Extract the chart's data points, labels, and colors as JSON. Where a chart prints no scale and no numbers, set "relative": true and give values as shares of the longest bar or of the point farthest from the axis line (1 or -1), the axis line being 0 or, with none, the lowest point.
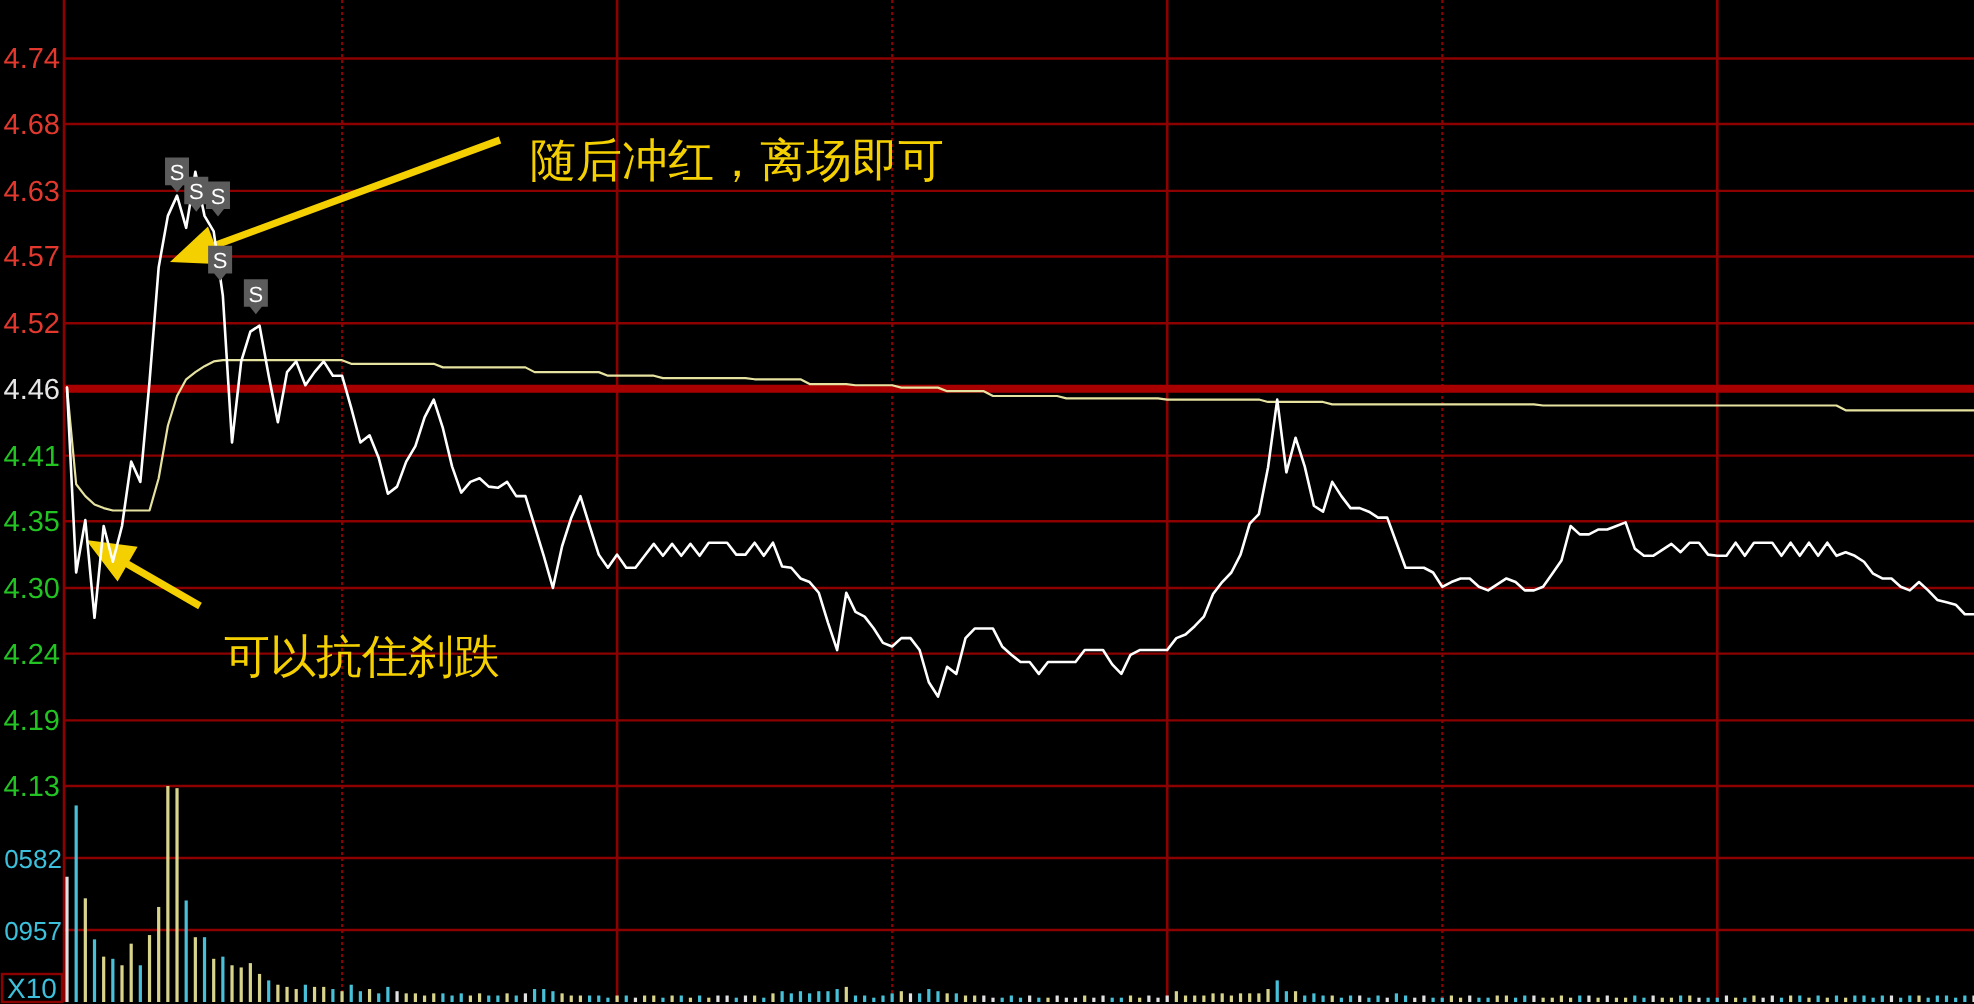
{
  "chart_data": [
    {
      "type": "line",
      "categories": [
        null,
        null,
        null,
        null,
        null,
        null,
        null,
        null,
        null,
        null,
        null,
        null,
        null,
        null,
        null,
        null,
        null,
        null,
        null,
        null,
        null,
        null,
        null,
        null,
        null,
        null,
        null,
        null,
        null,
        null,
        null,
        null,
        null,
        null,
        null,
        null,
        null,
        null,
        null,
        null,
        null,
        null,
        null,
        null,
        null,
        null,
        null,
        null,
        null,
        null,
        null,
        null,
        null,
        null,
        null,
        null,
        null,
        null,
        null,
        null,
        null,
        null,
        null,
        null,
        null,
        null,
        null,
        null,
        null,
        null,
        null,
        null,
        null,
        null,
        null,
        null,
        null,
        null,
        null,
        null,
        null,
        null,
        null,
        null,
        null,
        null,
        null,
        null,
        null,
        null,
        null,
        null,
        null,
        null,
        null,
        null,
        null,
        null,
        null,
        null,
        null,
        null,
        null,
        null,
        null,
        null,
        null,
        null,
        null,
        null,
        null,
        null,
        null,
        null,
        null,
        null,
        null,
        null,
        null,
        null,
        null,
        null,
        null,
        null,
        null,
        null,
        null,
        null,
        null,
        null,
        null,
        null,
        null,
        null,
        null,
        null,
        null,
        null,
        null,
        null,
        null,
        null,
        null,
        null,
        null,
        null,
        null,
        null,
        null,
        null,
        null,
        null,
        null,
        null,
        null,
        null,
        null,
        null,
        null,
        null,
        null,
        null,
        null,
        null,
        null,
        null,
        null,
        null,
        null,
        null,
        null,
        null,
        null,
        null,
        null,
        null,
        null,
        null,
        null,
        null,
        null,
        null,
        null,
        null,
        null,
        null,
        null,
        null,
        null,
        null,
        null,
        null,
        null,
        null,
        null,
        null,
        null,
        null,
        null,
        null,
        null,
        null,
        null,
        null,
        null,
        null,
        null,
        null,
        null
      ],
      "series": [
        {
          "color": "#e6e2a0",
          "values": [
            4.464,
            4.383,
            4.373,
            4.366,
            4.363,
            4.361,
            4.361,
            4.361,
            4.361,
            4.361,
            4.388,
            4.432,
            4.457,
            4.471,
            4.477,
            4.482,
            4.486,
            4.487,
            4.487,
            4.487,
            4.487,
            4.487,
            4.487,
            4.487,
            4.487,
            4.487,
            4.487,
            4.487,
            4.487,
            4.487,
            4.487,
            4.484,
            4.484,
            4.484,
            4.484,
            4.484,
            4.484,
            4.484,
            4.484,
            4.484,
            4.484,
            4.481,
            4.481,
            4.481,
            4.481,
            4.481,
            4.481,
            4.481,
            4.481,
            4.481,
            4.481,
            4.477,
            4.477,
            4.477,
            4.477,
            4.477,
            4.477,
            4.477,
            4.477,
            4.474,
            4.474,
            4.474,
            4.474,
            4.474,
            4.474,
            4.472,
            4.472,
            4.472,
            4.472,
            4.472,
            4.472,
            4.472,
            4.472,
            4.472,
            4.472,
            4.471,
            4.471,
            4.471,
            4.471,
            4.471,
            4.471,
            4.467,
            4.467,
            4.467,
            4.467,
            4.467,
            4.466,
            4.466,
            4.466,
            4.466,
            4.466,
            4.464,
            4.464,
            4.464,
            4.464,
            4.464,
            4.461,
            4.461,
            4.461,
            4.461,
            4.461,
            4.457,
            4.457,
            4.457,
            4.457,
            4.457,
            4.457,
            4.457,
            4.457,
            4.455,
            4.455,
            4.455,
            4.455,
            4.455,
            4.455,
            4.455,
            4.455,
            4.455,
            4.455,
            4.455,
            4.454,
            4.454,
            4.454,
            4.454,
            4.454,
            4.454,
            4.454,
            4.454,
            4.454,
            4.454,
            4.454,
            4.452,
            4.452,
            4.452,
            4.452,
            4.452,
            4.452,
            4.452,
            4.45,
            4.45,
            4.45,
            4.45,
            4.45,
            4.45,
            4.45,
            4.45,
            4.45,
            4.45,
            4.45,
            4.45,
            4.45,
            4.45,
            4.45,
            4.45,
            4.45,
            4.45,
            4.45,
            4.45,
            4.45,
            4.45,
            4.45,
            4.449,
            4.449,
            4.449,
            4.449,
            4.449,
            4.449,
            4.449,
            4.449,
            4.449,
            4.449,
            4.449,
            4.449,
            4.449,
            4.449,
            4.449,
            4.449,
            4.449,
            4.449,
            4.449,
            4.449,
            4.449,
            4.449,
            4.449,
            4.449,
            4.449,
            4.449,
            4.449,
            4.449,
            4.449,
            4.449,
            4.449,
            4.449,
            4.449,
            4.445,
            4.445,
            4.445,
            4.445,
            4.445,
            4.445,
            4.445,
            4.445,
            4.445,
            4.445,
            4.445,
            4.445,
            4.445,
            4.445,
            4.445
          ]
        },
        {
          "color": "#ffffff",
          "values": [
            4.464,
            4.309,
            4.353,
            4.271,
            4.348,
            4.318,
            4.348,
            4.402,
            4.385,
            4.469,
            4.565,
            4.608,
            4.625,
            4.598,
            4.645,
            4.608,
            4.595,
            4.541,
            4.418,
            4.486,
            4.511,
            4.516,
            4.474,
            4.435,
            4.477,
            4.486,
            4.466,
            4.477,
            4.486,
            4.474,
            4.474,
            4.447,
            4.418,
            4.424,
            4.405,
            4.375,
            4.381,
            4.402,
            4.415,
            4.439,
            4.454,
            4.43,
            4.398,
            4.376,
            4.385,
            4.388,
            4.381,
            4.38,
            4.385,
            4.373,
            4.373,
            4.348,
            4.323,
            4.296,
            4.331,
            4.355,
            4.373,
            4.348,
            4.324,
            4.313,
            4.324,
            4.313,
            4.313,
            4.323,
            4.333,
            4.323,
            4.333,
            4.323,
            4.333,
            4.323,
            4.334,
            4.334,
            4.334,
            4.324,
            4.324,
            4.334,
            4.323,
            4.334,
            4.314,
            4.313,
            4.304,
            4.301,
            4.292,
            4.267,
            4.244,
            4.292,
            4.276,
            4.272,
            4.262,
            4.25,
            4.247,
            4.254,
            4.254,
            4.244,
            4.217,
            4.205,
            4.23,
            4.224,
            4.254,
            4.262,
            4.262,
            4.262,
            4.247,
            4.24,
            4.234,
            4.234,
            4.224,
            4.234,
            4.234,
            4.234,
            4.234,
            4.244,
            4.244,
            4.244,
            4.232,
            4.224,
            4.24,
            4.244,
            4.244,
            4.244,
            4.244,
            4.254,
            4.257,
            4.264,
            4.272,
            4.291,
            4.301,
            4.309,
            4.324,
            4.35,
            4.358,
            4.397,
            4.454,
            4.393,
            4.422,
            4.398,
            4.365,
            4.36,
            4.385,
            4.373,
            4.363,
            4.363,
            4.36,
            4.355,
            4.355,
            4.334,
            4.313,
            4.313,
            4.313,
            4.309,
            4.297,
            4.301,
            4.304,
            4.304,
            4.297,
            4.294,
            4.299,
            4.304,
            4.301,
            4.294,
            4.294,
            4.297,
            4.308,
            4.319,
            4.348,
            4.341,
            4.341,
            4.345,
            4.345,
            4.348,
            4.351,
            4.329,
            4.323,
            4.323,
            4.328,
            4.333,
            4.326,
            4.334,
            4.334,
            4.324,
            4.323,
            4.323,
            4.334,
            4.323,
            4.334,
            4.334,
            4.334,
            4.323,
            4.334,
            4.323,
            4.334,
            4.323,
            4.334,
            4.323,
            4.326,
            4.323,
            4.318,
            4.308,
            4.304,
            4.304,
            4.297,
            4.294,
            4.301,
            4.294,
            4.286,
            4.284,
            4.282,
            4.274,
            4.274
          ]
        }
      ],
      "ylim": [
        4.13,
        4.789
      ],
      "yticks": [
        4.13,
        {
          "value": 4.185,
          "label": "4.19"
        },
        {
          "value": 4.241,
          "label": "4.24"
        },
        {
          "value": 4.296,
          "label": "4.30"
        },
        {
          "value": 4.352,
          "label": "4.35"
        },
        {
          "value": 4.407,
          "label": "4.41"
        },
        {
          "value": 4.463,
          "label": "4.46"
        },
        {
          "value": 4.518,
          "label": "4.52"
        },
        {
          "value": 4.574,
          "label": "4.57"
        },
        {
          "value": 4.629,
          "label": "4.63"
        },
        {
          "value": 4.685,
          "label": "4.68"
        },
        {
          "value": 4.74,
          "label": "4.74"
        }
      ],
      "tick_labels": "y",
      "grid": true,
      "ref_lines": [
        {
          "axis": "y",
          "value": 4.463,
          "color": "#a80000"
        }
      ],
      "annotations": [
        "随后冲红，离场即可",
        "可以抗住刹跌",
        {
          "text": "S",
          "y": 4.625
        },
        {
          "text": "S",
          "y": 4.609
        },
        {
          "text": "S",
          "y": 4.605
        },
        {
          "text": "S",
          "y": 4.551
        },
        {
          "text": "S",
          "y": 4.523
        }
      ]
    },
    {
      "type": "bar",
      "relative": true,
      "categories": [
        null,
        null,
        null,
        null,
        null,
        null,
        null,
        null,
        null,
        null,
        null,
        null,
        null,
        null,
        null,
        null,
        null,
        null,
        null,
        null,
        null,
        null,
        null,
        null,
        null,
        null,
        null,
        null,
        null,
        null,
        null,
        null,
        null,
        null,
        null,
        null,
        null,
        null,
        null,
        null,
        null,
        null,
        null,
        null,
        null,
        null,
        null,
        null,
        null,
        null,
        null,
        null,
        null,
        null,
        null,
        null,
        null,
        null,
        null,
        null,
        null,
        null,
        null,
        null,
        null,
        null,
        null,
        null,
        null,
        null,
        null,
        null,
        null,
        null,
        null,
        null,
        null,
        null,
        null,
        null,
        null,
        null,
        null,
        null,
        null,
        null,
        null,
        null,
        null,
        null,
        null,
        null,
        null,
        null,
        null,
        null,
        null,
        null,
        null,
        null,
        null,
        null,
        null,
        null,
        null,
        null,
        null,
        null,
        null,
        null,
        null,
        null,
        null,
        null,
        null,
        null,
        null,
        null,
        null,
        null,
        null,
        null,
        null,
        null,
        null,
        null,
        null,
        null,
        null,
        null,
        null,
        null,
        null,
        null,
        null,
        null,
        null,
        null,
        null,
        null,
        null,
        null,
        null,
        null,
        null,
        null,
        null,
        null,
        null,
        null,
        null,
        null,
        null,
        null,
        null,
        null,
        null,
        null,
        null,
        null,
        null,
        null,
        null,
        null,
        null,
        null,
        null,
        null,
        null,
        null,
        null,
        null,
        null,
        null,
        null,
        null,
        null,
        null,
        null,
        null,
        null,
        null,
        null,
        null,
        null,
        null,
        null,
        null,
        null,
        null,
        null,
        null,
        null,
        null,
        null,
        null,
        null,
        null,
        null,
        null,
        null,
        null,
        null,
        null,
        null,
        null,
        null,
        null,
        null
      ],
      "values": [
        0.58,
        0.91,
        0.48,
        0.29,
        0.21,
        0.2,
        0.17,
        0.27,
        0.17,
        0.31,
        0.44,
        1,
        0.99,
        0.47,
        0.3,
        0.3,
        0.2,
        0.21,
        0.17,
        0.16,
        0.18,
        0.13,
        0.1,
        0.08,
        0.07,
        0.06,
        0.08,
        0.07,
        0.07,
        0.06,
        0.05,
        0.08,
        0.05,
        0.06,
        0.04,
        0.07,
        0.05,
        0.04,
        0.04,
        0.03,
        0.04,
        0.04,
        0.03,
        0.04,
        0.03,
        0.04,
        0.03,
        0.03,
        0.04,
        0.03,
        0.04,
        0.06,
        0.06,
        0.05,
        0.04,
        0.03,
        0.03,
        0.03,
        0.03,
        0.02,
        0.03,
        0.03,
        0.02,
        0.03,
        0.03,
        0.02,
        0.03,
        0.03,
        0.02,
        0.03,
        0.02,
        0.03,
        0.03,
        0.02,
        0.03,
        0.03,
        0.02,
        0.04,
        0.05,
        0.04,
        0.05,
        0.04,
        0.05,
        0.05,
        0.06,
        0.07,
        0.03,
        0.03,
        0.02,
        0.03,
        0.04,
        0.05,
        0.04,
        0.04,
        0.06,
        0.05,
        0.04,
        0.04,
        0.03,
        0.03,
        0.03,
        0.02,
        0.02,
        0.03,
        0.02,
        0.03,
        0.02,
        0.02,
        0.03,
        0.02,
        0.02,
        0.03,
        0.02,
        0.03,
        0.02,
        0.02,
        0.03,
        0.02,
        0.03,
        0.02,
        0.03,
        0.05,
        0.03,
        0.03,
        0.03,
        0.04,
        0.04,
        0.03,
        0.04,
        0.04,
        0.04,
        0.06,
        0.1,
        0.05,
        0.05,
        0.03,
        0.04,
        0.03,
        0.03,
        0.02,
        0.03,
        0.03,
        0.02,
        0.03,
        0.02,
        0.04,
        0.03,
        0.02,
        0.03,
        0.02,
        0.02,
        0.03,
        0.02,
        0.03,
        0.02,
        0.02,
        0.03,
        0.03,
        0.02,
        0.03,
        0.03,
        0.02,
        0.02,
        0.03,
        0.02,
        0.03,
        0.03,
        0.02,
        0.03,
        0.02,
        0.02,
        0.03,
        0.02,
        0.03,
        0.02,
        0.02,
        0.03,
        0.03,
        0.02,
        0.02,
        0.02,
        0.03,
        0.02,
        0.02,
        0.03,
        0.02,
        0.03,
        0.02,
        0.03,
        0.03,
        0.02,
        0.03,
        0.02,
        0.03,
        0.02,
        0.03,
        0.03,
        0.02,
        0.03,
        0.03,
        0.02,
        0.03,
        0.03,
        0.02,
        0.03,
        0.03,
        0.02,
        0.03,
        0.03
      ],
      "colors": [
        "#e0e0e0",
        "#48c0d8",
        "#d8d48c",
        "#48c0d8",
        "#d8d48c",
        "#48c0d8",
        "#d8d48c",
        "#d8d48c",
        "#48c0d8",
        "#d8d48c",
        "#d8d48c",
        "#d8d48c",
        "#d8d48c",
        "#48c0d8",
        "#d8d48c",
        "#48c0d8",
        "#d8d48c",
        "#48c0d8",
        "#d8d48c",
        "#d8d48c",
        "#d8d48c",
        "#d8d48c",
        "#48c0d8",
        "#d8d48c",
        "#d8d48c",
        "#d8d48c",
        "#48c0d8",
        "#d8d48c",
        "#d8d48c",
        "#48c0d8",
        "#d8d48c",
        "#48c0d8",
        "#48c0d8",
        "#d8d48c",
        "#48c0d8",
        "#48c0d8",
        "#e0e0e0",
        "#d8d48c",
        "#d8d48c",
        "#d8d48c",
        "#d8d48c",
        "#48c0d8",
        "#48c0d8",
        "#48c0d8",
        "#d8d48c",
        "#d8d48c",
        "#48c0d8",
        "#48c0d8",
        "#d8d48c",
        "#48c0d8",
        "#e0e0e0",
        "#48c0d8",
        "#48c0d8",
        "#48c0d8",
        "#d8d48c",
        "#d8d48c",
        "#d8d48c",
        "#48c0d8",
        "#48c0d8",
        "#48c0d8",
        "#d8d48c",
        "#48c0d8",
        "#e0e0e0",
        "#d8d48c",
        "#d8d48c",
        "#48c0d8",
        "#d8d48c",
        "#48c0d8",
        "#d8d48c",
        "#48c0d8",
        "#d8d48c",
        "#e0e0e0",
        "#e0e0e0",
        "#48c0d8",
        "#e0e0e0",
        "#d8d48c",
        "#48c0d8",
        "#d8d48c",
        "#48c0d8",
        "#48c0d8",
        "#48c0d8",
        "#48c0d8",
        "#48c0d8",
        "#48c0d8",
        "#48c0d8",
        "#d8d48c",
        "#48c0d8",
        "#48c0d8",
        "#48c0d8",
        "#48c0d8",
        "#48c0d8",
        "#d8d48c",
        "#e0e0e0",
        "#48c0d8",
        "#48c0d8",
        "#48c0d8",
        "#d8d48c",
        "#48c0d8",
        "#d8d48c",
        "#d8d48c",
        "#e0e0e0",
        "#e0e0e0",
        "#48c0d8",
        "#48c0d8",
        "#48c0d8",
        "#e0e0e0",
        "#48c0d8",
        "#d8d48c",
        "#e0e0e0",
        "#e0e0e0",
        "#e0e0e0",
        "#d8d48c",
        "#e0e0e0",
        "#e0e0e0",
        "#48c0d8",
        "#48c0d8",
        "#d8d48c",
        "#d8d48c",
        "#e0e0e0",
        "#e0e0e0",
        "#e0e0e0",
        "#d8d48c",
        "#d8d48c",
        "#d8d48c",
        "#d8d48c",
        "#d8d48c",
        "#d8d48c",
        "#d8d48c",
        "#d8d48c",
        "#d8d48c",
        "#d8d48c",
        "#d8d48c",
        "#48c0d8",
        "#48c0d8",
        "#d8d48c",
        "#48c0d8",
        "#48c0d8",
        "#48c0d8",
        "#d8d48c",
        "#48c0d8",
        "#48c0d8",
        "#e0e0e0",
        "#48c0d8",
        "#48c0d8",
        "#e0e0e0",
        "#48c0d8",
        "#48c0d8",
        "#e0e0e0",
        "#e0e0e0",
        "#48c0d8",
        "#48c0d8",
        "#d8d48c",
        "#d8d48c",
        "#e0e0e0",
        "#48c0d8",
        "#48c0d8",
        "#d8d48c",
        "#d8d48c",
        "#48c0d8",
        "#48c0d8",
        "#e0e0e0",
        "#d8d48c",
        "#d8d48c",
        "#d8d48c",
        "#d8d48c",
        "#48c0d8",
        "#e0e0e0",
        "#d8d48c",
        "#e0e0e0",
        "#d8d48c",
        "#d8d48c",
        "#48c0d8",
        "#48c0d8",
        "#e0e0e0",
        "#d8d48c",
        "#d8d48c",
        "#48c0d8",
        "#d8d48c",
        "#e0e0e0",
        "#48c0d8",
        "#48c0d8",
        "#e0e0e0",
        "#d8d48c",
        "#48c0d8",
        "#d8d48c",
        "#e0e0e0",
        "#e0e0e0",
        "#48c0d8",
        "#d8d48c",
        "#48c0d8",
        "#d8d48c",
        "#48c0d8",
        "#d8d48c",
        "#48c0d8",
        "#d8d48c",
        "#48c0d8",
        "#48c0d8",
        "#48c0d8",
        "#48c0d8",
        "#e0e0e0",
        "#48c0d8",
        "#48c0d8",
        "#d8d48c",
        "#48c0d8",
        "#48c0d8",
        "#48c0d8",
        "#48c0d8",
        "#48c0d8",
        "#e0e0e0"
      ],
      "grid": true,
      "tick_labels": false,
      "annotations": [
        "0582",
        "0957",
        "X10"
      ]
    }
  ]
}
